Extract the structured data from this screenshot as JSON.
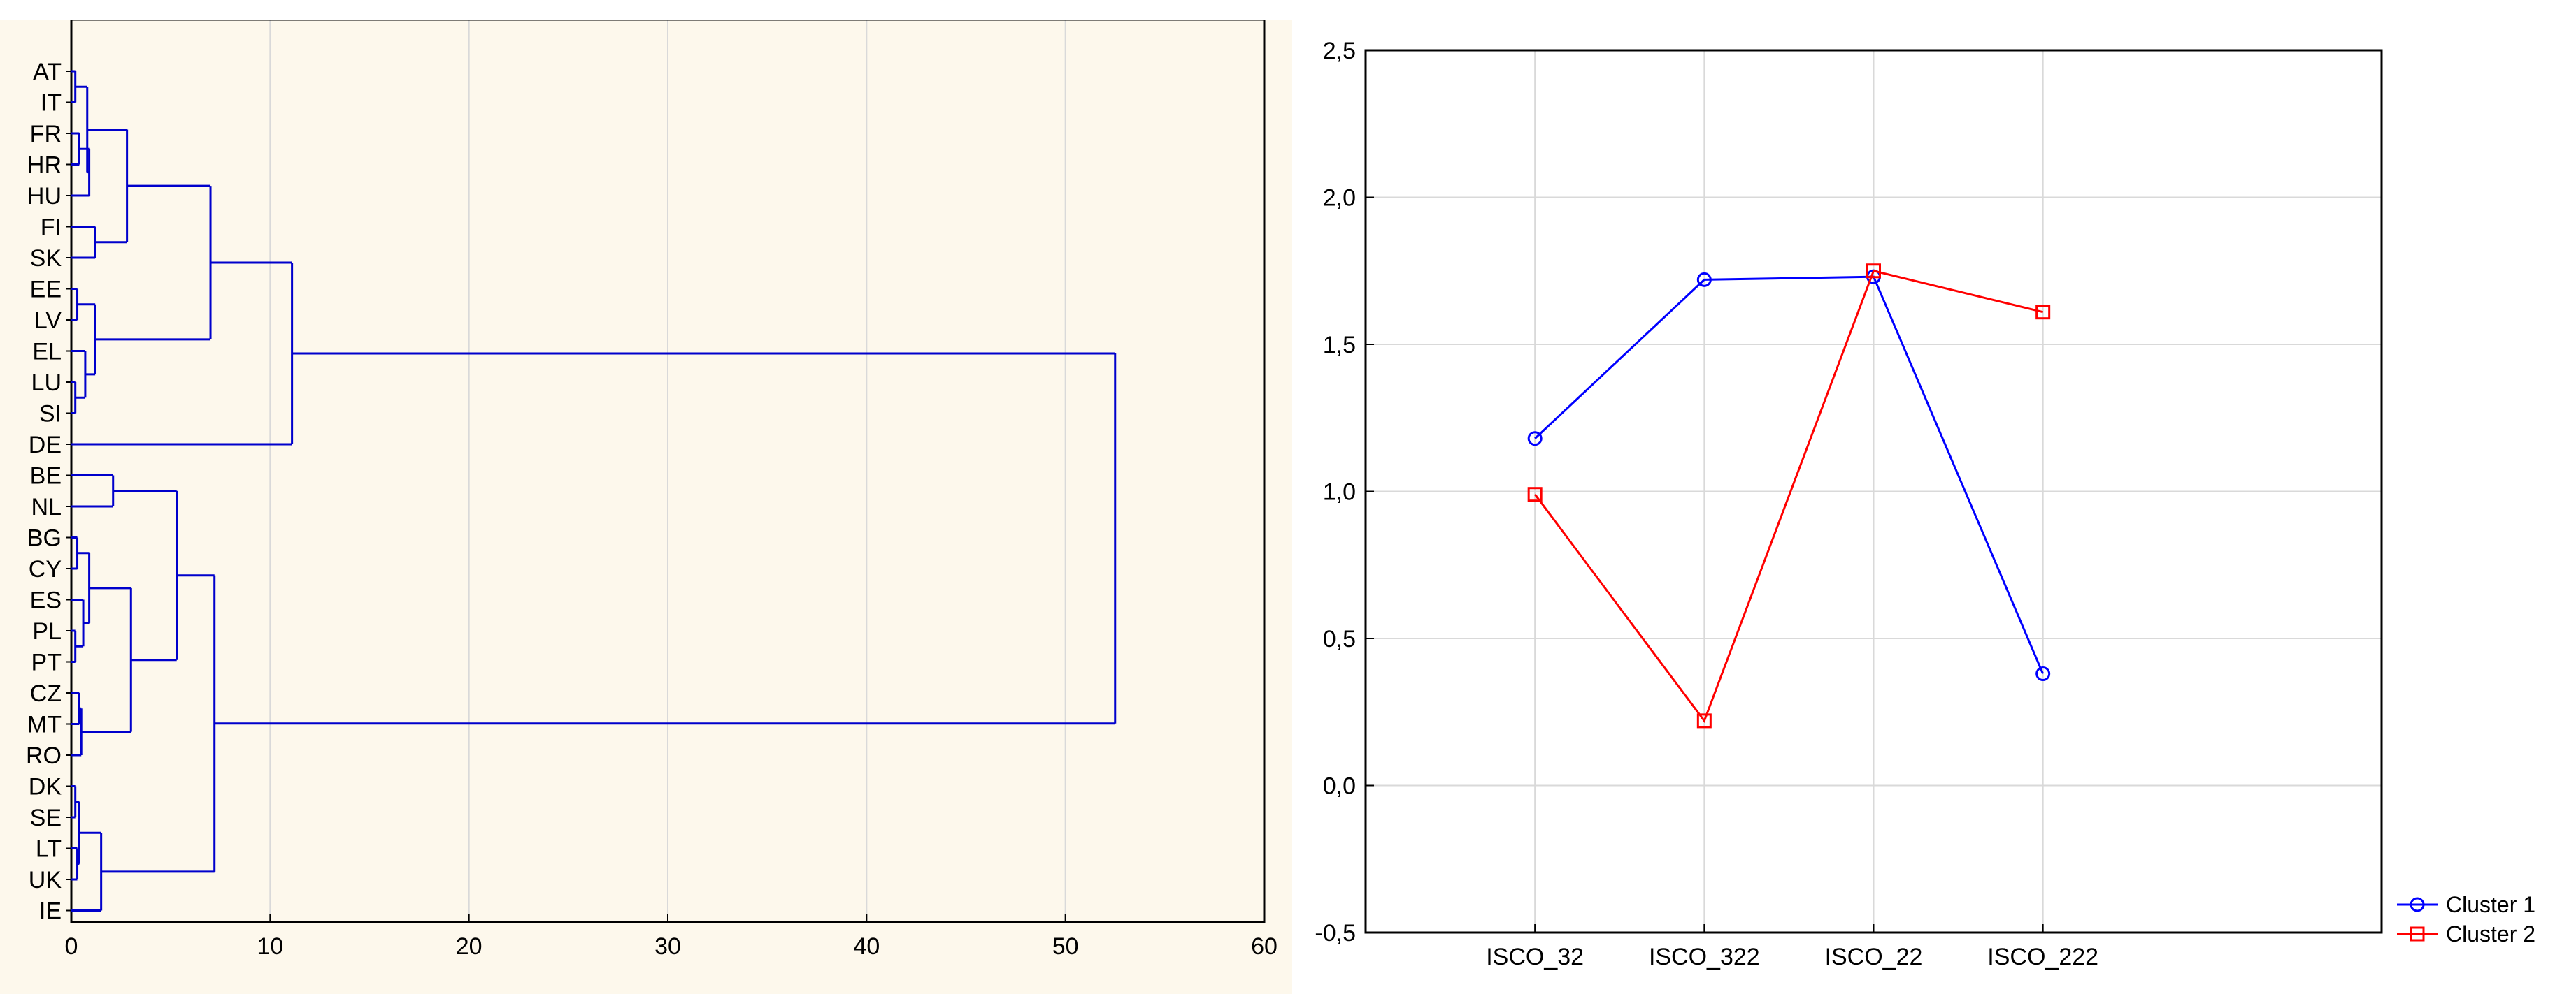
{
  "colors": {
    "dendrogram": "#0000cc",
    "cluster1": "#0000ff",
    "cluster2": "#ff0000",
    "grid": "#d9d9d9",
    "panel_bg": "#fdf8ec"
  },
  "chart_data": [
    {
      "type": "dendrogram",
      "orientation": "horizontal",
      "leaves": [
        "AT",
        "IT",
        "FR",
        "HR",
        "HU",
        "FI",
        "SK",
        "EE",
        "LV",
        "EL",
        "LU",
        "SI",
        "DE",
        "BE",
        "NL",
        "BG",
        "CY",
        "ES",
        "PL",
        "PT",
        "CZ",
        "MT",
        "RO",
        "DK",
        "SE",
        "LT",
        "UK",
        "IE"
      ],
      "x_ticks": [
        0,
        10,
        20,
        30,
        40,
        50,
        60
      ],
      "xlim": [
        0,
        60
      ],
      "grid": true,
      "merges": [
        {
          "id": "m_at_it",
          "children": [
            "AT",
            "IT"
          ],
          "height": 0.2
        },
        {
          "id": "m_fr_hr",
          "children": [
            "FR",
            "HR"
          ],
          "height": 0.4
        },
        {
          "id": "m_frhr_hu",
          "children": [
            "m_fr_hr",
            "HU"
          ],
          "height": 0.9
        },
        {
          "id": "m_atit_frhrhu",
          "children": [
            "m_at_it",
            "m_frhr_hu"
          ],
          "height": 0.8
        },
        {
          "id": "m_fi_sk",
          "children": [
            "FI",
            "SK"
          ],
          "height": 1.2
        },
        {
          "id": "m_a_fisk",
          "children": [
            "m_atit_frhrhu",
            "m_fi_sk"
          ],
          "height": 2.8
        },
        {
          "id": "m_ee_lv",
          "children": [
            "EE",
            "LV"
          ],
          "height": 0.3
        },
        {
          "id": "m_lu_si",
          "children": [
            "LU",
            "SI"
          ],
          "height": 0.2
        },
        {
          "id": "m_el_lusi",
          "children": [
            "EL",
            "m_lu_si"
          ],
          "height": 0.7
        },
        {
          "id": "m_eelv_el",
          "children": [
            "m_ee_lv",
            "m_el_lusi"
          ],
          "height": 1.2
        },
        {
          "id": "m_groupA",
          "children": [
            "m_a_fisk",
            "m_eelv_el"
          ],
          "height": 7.0
        },
        {
          "id": "m_top1",
          "children": [
            "m_groupA",
            "DE"
          ],
          "height": 11.1
        },
        {
          "id": "m_be_nl",
          "children": [
            "BE",
            "NL"
          ],
          "height": 2.1
        },
        {
          "id": "m_bg_cy",
          "children": [
            "BG",
            "CY"
          ],
          "height": 0.3
        },
        {
          "id": "m_pl_pt",
          "children": [
            "PL",
            "PT"
          ],
          "height": 0.2
        },
        {
          "id": "m_es_plpt",
          "children": [
            "ES",
            "m_pl_pt"
          ],
          "height": 0.6
        },
        {
          "id": "m_bgcy_es",
          "children": [
            "m_bg_cy",
            "m_es_plpt"
          ],
          "height": 0.9
        },
        {
          "id": "m_cz_mt",
          "children": [
            "CZ",
            "MT"
          ],
          "height": 0.4
        },
        {
          "id": "m_czmt_ro",
          "children": [
            "m_cz_mt",
            "RO"
          ],
          "height": 0.5
        },
        {
          "id": "m_east",
          "children": [
            "m_bgcy_es",
            "m_czmt_ro"
          ],
          "height": 3.0
        },
        {
          "id": "m_benl_east",
          "children": [
            "m_be_nl",
            "m_east"
          ],
          "height": 5.3
        },
        {
          "id": "m_dk_se",
          "children": [
            "DK",
            "SE"
          ],
          "height": 0.2
        },
        {
          "id": "m_lt_uk",
          "children": [
            "LT",
            "UK"
          ],
          "height": 0.3
        },
        {
          "id": "m_dkse_ltuk",
          "children": [
            "m_dk_se",
            "m_lt_uk"
          ],
          "height": 0.4
        },
        {
          "id": "m_nordic_ie",
          "children": [
            "m_dkse_ltuk",
            "IE"
          ],
          "height": 1.5
        },
        {
          "id": "m_top2",
          "children": [
            "m_benl_east",
            "m_nordic_ie"
          ],
          "height": 7.2
        },
        {
          "id": "m_root",
          "children": [
            "m_top1",
            "m_top2"
          ],
          "height": 52.5
        }
      ]
    },
    {
      "type": "line",
      "categories": [
        "ISCO_32",
        "ISCO_322",
        "ISCO_22",
        "ISCO_222"
      ],
      "series": [
        {
          "name": "Cluster 1",
          "marker": "circle",
          "values": [
            1.18,
            1.72,
            1.73,
            0.38
          ]
        },
        {
          "name": "Cluster 2",
          "marker": "square",
          "values": [
            0.99,
            0.22,
            1.75,
            1.61
          ]
        }
      ],
      "y_ticks": [
        "2,5",
        "2,0",
        "1,5",
        "1,0",
        "0,5",
        "0,0",
        "-0,5"
      ],
      "ylim": [
        -0.5,
        2.5
      ],
      "grid": true,
      "legend_position": "bottom-right"
    }
  ]
}
